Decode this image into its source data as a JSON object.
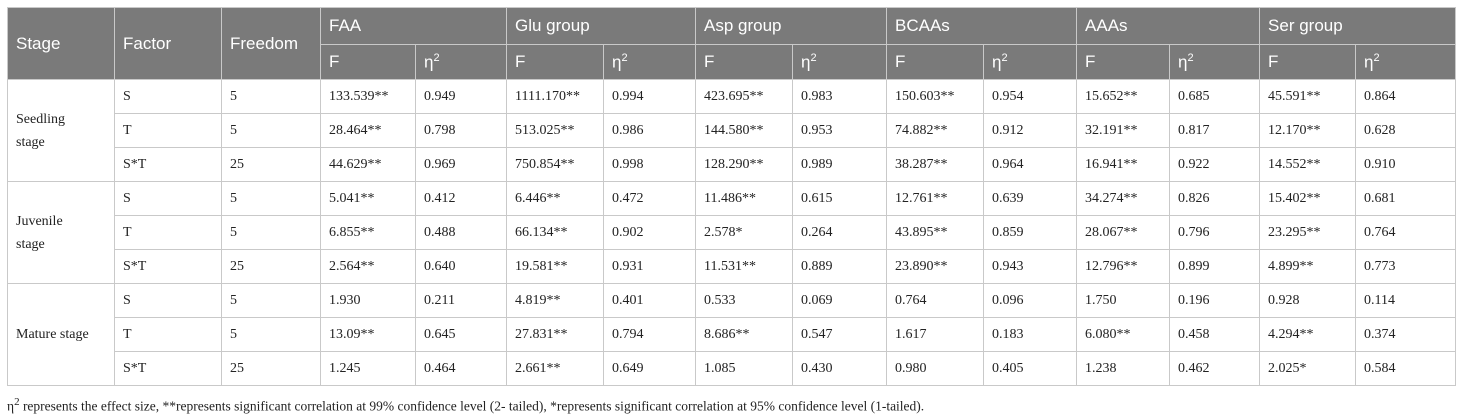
{
  "header": {
    "stage": "Stage",
    "factor": "Factor",
    "freedom": "Freedom",
    "groups": [
      "FAA",
      "Glu group",
      "Asp group",
      "BCAAs",
      "AAAs",
      "Ser group"
    ],
    "sub_f": "F",
    "sub_eta": "η",
    "sub_eta_sup": "2"
  },
  "stages": [
    {
      "name": "Seedling stage",
      "rows": [
        {
          "factor": "S",
          "df": "5",
          "values": [
            "133.539**",
            "0.949",
            "1111.170**",
            "0.994",
            "423.695**",
            "0.983",
            "150.603**",
            "0.954",
            "15.652**",
            "0.685",
            "45.591**",
            "0.864"
          ]
        },
        {
          "factor": "T",
          "df": "5",
          "values": [
            "28.464**",
            "0.798",
            "513.025**",
            "0.986",
            "144.580**",
            "0.953",
            "74.882**",
            "0.912",
            "32.191**",
            "0.817",
            "12.170**",
            "0.628"
          ]
        },
        {
          "factor": "S*T",
          "df": "25",
          "values": [
            "44.629**",
            "0.969",
            "750.854**",
            "0.998",
            "128.290**",
            "0.989",
            "38.287**",
            "0.964",
            "16.941**",
            "0.922",
            "14.552**",
            "0.910"
          ]
        }
      ]
    },
    {
      "name": "Juvenile stage",
      "rows": [
        {
          "factor": "S",
          "df": "5",
          "values": [
            "5.041**",
            "0.412",
            "6.446**",
            "0.472",
            "11.486**",
            "0.615",
            "12.761**",
            "0.639",
            "34.274**",
            "0.826",
            "15.402**",
            "0.681"
          ]
        },
        {
          "factor": "T",
          "df": "5",
          "values": [
            "6.855**",
            "0.488",
            "66.134**",
            "0.902",
            "2.578*",
            "0.264",
            "43.895**",
            "0.859",
            "28.067**",
            "0.796",
            "23.295**",
            "0.764"
          ]
        },
        {
          "factor": "S*T",
          "df": "25",
          "values": [
            "2.564**",
            "0.640",
            "19.581**",
            "0.931",
            "11.531**",
            "0.889",
            "23.890**",
            "0.943",
            "12.796**",
            "0.899",
            "4.899**",
            "0.773"
          ]
        }
      ]
    },
    {
      "name": "Mature stage",
      "rows": [
        {
          "factor": "S",
          "df": "5",
          "values": [
            "1.930",
            "0.211",
            "4.819**",
            "0.401",
            "0.533",
            "0.069",
            "0.764",
            "0.096",
            "1.750",
            "0.196",
            "0.928",
            "0.114"
          ]
        },
        {
          "factor": "T",
          "df": "5",
          "values": [
            "13.09**",
            "0.645",
            "27.831**",
            "0.794",
            "8.686**",
            "0.547",
            "1.617",
            "0.183",
            "6.080**",
            "0.458",
            "4.294**",
            "0.374"
          ]
        },
        {
          "factor": "S*T",
          "df": "25",
          "values": [
            "1.245",
            "0.464",
            "2.661**",
            "0.649",
            "1.085",
            "0.430",
            "0.980",
            "0.405",
            "1.238",
            "0.462",
            "2.025*",
            "0.584"
          ]
        }
      ]
    }
  ],
  "footnote": {
    "eta": "η",
    "eta_sup": "2",
    "text": " represents the effect size, **represents significant correlation at 99% confidence level (2- tailed), *represents significant correlation at 95% confidence level (1-tailed)."
  }
}
